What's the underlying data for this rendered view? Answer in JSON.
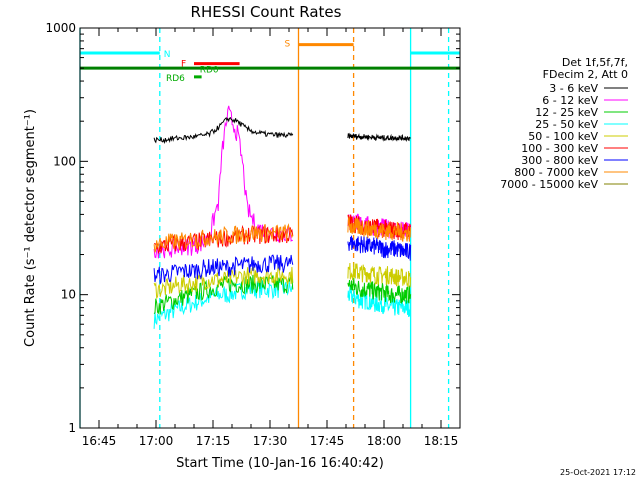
{
  "chart_data": {
    "type": "line",
    "title": "RHESSI Count Rates",
    "xlabel": "Start Time (10-Jan-16 16:40:42)",
    "ylabel": "Count Rate (s⁻¹ detector segment⁻¹)",
    "yscale": "log",
    "ylim": [
      1,
      1000
    ],
    "xlim_minutes_after_1640": [
      0,
      100
    ],
    "x_ticks": [
      "16:45",
      "17:00",
      "17:15",
      "17:30",
      "17:45",
      "18:00",
      "18:15"
    ],
    "x_tick_minutes": [
      5,
      20,
      35,
      50,
      65,
      80,
      95
    ],
    "y_ticks": [
      "1",
      "10",
      "100",
      "1000"
    ],
    "y_tick_values": [
      1,
      10,
      100,
      1000
    ],
    "legend_header": [
      "Det 1f,5f,7f,",
      "FDecim 2, Att 0"
    ],
    "legend_position": "right",
    "series": [
      {
        "name": "3 - 6 keV",
        "color": "#000000",
        "seg1": [
          145,
          145,
          148,
          150,
          152,
          155,
          160,
          180,
          210,
          200,
          175,
          165,
          160,
          158,
          157,
          156
        ],
        "seg2": [
          155,
          154,
          153,
          152,
          151,
          150,
          150,
          150,
          150,
          149
        ]
      },
      {
        "name": "6 - 12 keV",
        "color": "#ff00ff",
        "seg1": [
          22,
          22,
          22,
          23,
          23,
          24,
          26,
          50,
          230,
          160,
          45,
          32,
          30,
          29,
          29,
          28
        ],
        "seg2": [
          36,
          35,
          34,
          33,
          32,
          32,
          31,
          31,
          30,
          30
        ]
      },
      {
        "name": "12 - 25 keV",
        "color": "#00cc00",
        "seg1": [
          8,
          8.5,
          9,
          9.5,
          10,
          10.5,
          11,
          11.5,
          12,
          12,
          12,
          12,
          12,
          12,
          12,
          12
        ],
        "seg2": [
          12,
          11.5,
          11,
          11,
          10.5,
          10.5,
          10,
          10,
          10,
          10
        ]
      },
      {
        "name": "25 - 50 keV",
        "color": "#00ffff",
        "seg1": [
          6.5,
          7,
          7.5,
          8,
          8.5,
          9,
          9.5,
          10,
          10,
          10.5,
          11,
          11,
          11,
          11,
          11,
          11
        ],
        "seg2": [
          10,
          9.5,
          9,
          9,
          8.5,
          8.5,
          8,
          8,
          8,
          8
        ]
      },
      {
        "name": "50 - 100 keV",
        "color": "#cccc00",
        "seg1": [
          11,
          11,
          11.5,
          12,
          12,
          12.5,
          13,
          13,
          13,
          13.5,
          14,
          14,
          14,
          14,
          14,
          14
        ],
        "seg2": [
          15,
          15,
          14.5,
          14.5,
          14,
          14,
          14,
          13.5,
          13.5,
          13
        ]
      },
      {
        "name": "100 - 300 keV",
        "color": "#ff0000",
        "seg1": [
          23,
          23,
          24,
          24,
          25,
          25,
          26,
          26,
          27,
          27,
          28,
          28,
          28,
          28,
          28,
          28
        ],
        "seg2": [
          35,
          34,
          33,
          32,
          32,
          31,
          31,
          30,
          30,
          30
        ]
      },
      {
        "name": "300 - 800 keV",
        "color": "#0000ff",
        "seg1": [
          14,
          14,
          14.5,
          15,
          15,
          15.5,
          16,
          16,
          16,
          16.5,
          16.5,
          17,
          17,
          17,
          17,
          17
        ],
        "seg2": [
          25,
          24,
          24,
          23,
          23,
          22,
          22,
          22,
          21,
          21
        ]
      },
      {
        "name": "800 - 7000 keV",
        "color": "#ff8800",
        "seg1": [
          24,
          24,
          25,
          25,
          26,
          26,
          27,
          27,
          28,
          28,
          29,
          29,
          29,
          29,
          29,
          29
        ],
        "seg2": [
          33,
          32,
          32,
          31,
          31,
          30,
          30,
          30,
          29,
          29
        ]
      },
      {
        "name": "7000 - 15000 keV",
        "color": "#808000",
        "seg1": [],
        "seg2": []
      }
    ],
    "segment1_minutes": [
      19.5,
      56
    ],
    "segment2_minutes": [
      70.5,
      87
    ],
    "flag_bars": [
      {
        "label": "N",
        "color": "#00ffff",
        "y": 650,
        "ranges": [
          [
            0,
            21
          ],
          [
            87,
            100
          ]
        ]
      },
      {
        "label": "S",
        "color": "#ff8800",
        "y": 750,
        "ranges": [
          [
            57.5,
            72
          ]
        ]
      },
      {
        "label": "F",
        "color": "#ff0000",
        "y": 540,
        "ranges": [
          [
            30,
            42
          ]
        ]
      },
      {
        "label": "RD0",
        "color": "#00aa00",
        "y": 540,
        "ranges": []
      },
      {
        "label": "RD6",
        "color": "#00aa00",
        "y": 430,
        "ranges": [
          [
            30,
            32
          ]
        ]
      }
    ],
    "attenuator_line": {
      "color": "#008000",
      "value": 500
    },
    "vertical_lines": [
      {
        "minute": 0,
        "color": "#00ffff",
        "style": "solid"
      },
      {
        "minute": 21,
        "color": "#00ffff",
        "style": "dashed"
      },
      {
        "minute": 57.5,
        "color": "#ff8800",
        "style": "solid"
      },
      {
        "minute": 72,
        "color": "#ff8800",
        "style": "dashed"
      },
      {
        "minute": 87,
        "color": "#00ffff",
        "style": "solid"
      },
      {
        "minute": 97,
        "color": "#00ffff",
        "style": "dashed"
      }
    ]
  },
  "footer": {
    "timestamp": "25-Oct-2021 17:12"
  }
}
